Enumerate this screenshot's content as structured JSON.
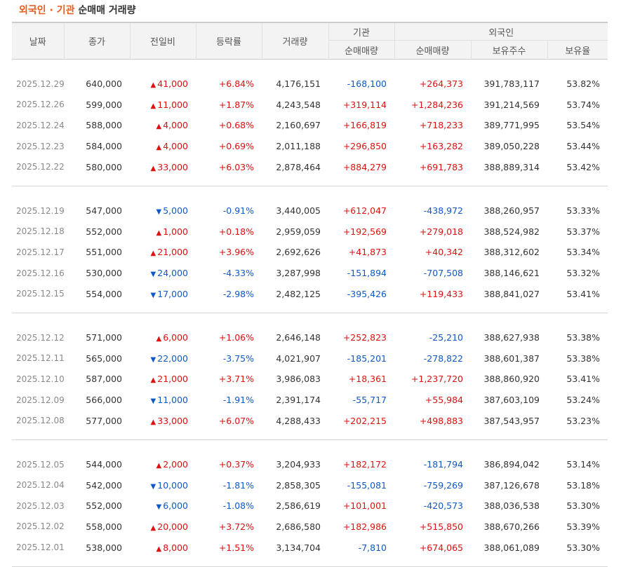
{
  "title": {
    "accent": "외국인 · 기관",
    "rest": "순매매 거래량"
  },
  "headers": {
    "date": "날짜",
    "close": "종가",
    "change": "전일비",
    "rate": "등락률",
    "volume": "거래량",
    "institution": "기관",
    "inst_net": "순매매량",
    "foreign": "외국인",
    "foreign_net": "순매매량",
    "foreign_shares": "보유주수",
    "foreign_ratio": "보유율"
  },
  "colors": {
    "up": "#dd1111",
    "down": "#1158c7",
    "accent": "#e95a1b"
  },
  "groups": [
    [
      {
        "date": "2025.12.29",
        "close": "640,000",
        "dir": "up",
        "change": "41,000",
        "rate": "+6.84%",
        "volume": "4,176,151",
        "inst": "-168,100",
        "foreign": "+264,373",
        "shares": "391,783,117",
        "ratio": "53.82%"
      },
      {
        "date": "2025.12.26",
        "close": "599,000",
        "dir": "up",
        "change": "11,000",
        "rate": "+1.87%",
        "volume": "4,243,548",
        "inst": "+319,114",
        "foreign": "+1,284,236",
        "shares": "391,214,569",
        "ratio": "53.74%"
      },
      {
        "date": "2025.12.24",
        "close": "588,000",
        "dir": "up",
        "change": "4,000",
        "rate": "+0.68%",
        "volume": "2,160,697",
        "inst": "+166,819",
        "foreign": "+718,233",
        "shares": "389,771,995",
        "ratio": "53.54%"
      },
      {
        "date": "2025.12.23",
        "close": "584,000",
        "dir": "up",
        "change": "4,000",
        "rate": "+0.69%",
        "volume": "2,011,188",
        "inst": "+296,850",
        "foreign": "+163,282",
        "shares": "389,050,228",
        "ratio": "53.44%"
      },
      {
        "date": "2025.12.22",
        "close": "580,000",
        "dir": "up",
        "change": "33,000",
        "rate": "+6.03%",
        "volume": "2,878,464",
        "inst": "+884,279",
        "foreign": "+691,783",
        "shares": "388,889,314",
        "ratio": "53.42%"
      }
    ],
    [
      {
        "date": "2025.12.19",
        "close": "547,000",
        "dir": "down",
        "change": "5,000",
        "rate": "-0.91%",
        "volume": "3,440,005",
        "inst": "+612,047",
        "foreign": "-438,972",
        "shares": "388,260,957",
        "ratio": "53.33%"
      },
      {
        "date": "2025.12.18",
        "close": "552,000",
        "dir": "up",
        "change": "1,000",
        "rate": "+0.18%",
        "volume": "2,959,059",
        "inst": "+192,569",
        "foreign": "+279,018",
        "shares": "388,524,982",
        "ratio": "53.37%"
      },
      {
        "date": "2025.12.17",
        "close": "551,000",
        "dir": "up",
        "change": "21,000",
        "rate": "+3.96%",
        "volume": "2,692,626",
        "inst": "+41,873",
        "foreign": "+40,342",
        "shares": "388,312,602",
        "ratio": "53.34%"
      },
      {
        "date": "2025.12.16",
        "close": "530,000",
        "dir": "down",
        "change": "24,000",
        "rate": "-4.33%",
        "volume": "3,287,998",
        "inst": "-151,894",
        "foreign": "-707,508",
        "shares": "388,146,621",
        "ratio": "53.32%"
      },
      {
        "date": "2025.12.15",
        "close": "554,000",
        "dir": "down",
        "change": "17,000",
        "rate": "-2.98%",
        "volume": "2,482,125",
        "inst": "-395,426",
        "foreign": "+119,433",
        "shares": "388,841,027",
        "ratio": "53.41%"
      }
    ],
    [
      {
        "date": "2025.12.12",
        "close": "571,000",
        "dir": "up",
        "change": "6,000",
        "rate": "+1.06%",
        "volume": "2,646,148",
        "inst": "+252,823",
        "foreign": "-25,210",
        "shares": "388,627,938",
        "ratio": "53.38%"
      },
      {
        "date": "2025.12.11",
        "close": "565,000",
        "dir": "down",
        "change": "22,000",
        "rate": "-3.75%",
        "volume": "4,021,907",
        "inst": "-185,201",
        "foreign": "-278,822",
        "shares": "388,601,387",
        "ratio": "53.38%"
      },
      {
        "date": "2025.12.10",
        "close": "587,000",
        "dir": "up",
        "change": "21,000",
        "rate": "+3.71%",
        "volume": "3,986,083",
        "inst": "+18,361",
        "foreign": "+1,237,720",
        "shares": "388,860,920",
        "ratio": "53.41%"
      },
      {
        "date": "2025.12.09",
        "close": "566,000",
        "dir": "down",
        "change": "11,000",
        "rate": "-1.91%",
        "volume": "2,391,174",
        "inst": "-55,717",
        "foreign": "+55,984",
        "shares": "387,603,109",
        "ratio": "53.24%"
      },
      {
        "date": "2025.12.08",
        "close": "577,000",
        "dir": "up",
        "change": "33,000",
        "rate": "+6.07%",
        "volume": "4,288,433",
        "inst": "+202,215",
        "foreign": "+498,883",
        "shares": "387,543,957",
        "ratio": "53.23%"
      }
    ],
    [
      {
        "date": "2025.12.05",
        "close": "544,000",
        "dir": "up",
        "change": "2,000",
        "rate": "+0.37%",
        "volume": "3,204,933",
        "inst": "+182,172",
        "foreign": "-181,794",
        "shares": "386,894,042",
        "ratio": "53.14%"
      },
      {
        "date": "2025.12.04",
        "close": "542,000",
        "dir": "down",
        "change": "10,000",
        "rate": "-1.81%",
        "volume": "2,858,305",
        "inst": "-155,081",
        "foreign": "-759,269",
        "shares": "387,126,678",
        "ratio": "53.18%"
      },
      {
        "date": "2025.12.03",
        "close": "552,000",
        "dir": "down",
        "change": "6,000",
        "rate": "-1.08%",
        "volume": "2,586,619",
        "inst": "+101,001",
        "foreign": "-420,573",
        "shares": "388,036,538",
        "ratio": "53.30%"
      },
      {
        "date": "2025.12.02",
        "close": "558,000",
        "dir": "up",
        "change": "20,000",
        "rate": "+3.72%",
        "volume": "2,686,580",
        "inst": "+182,986",
        "foreign": "+515,850",
        "shares": "388,670,266",
        "ratio": "53.39%"
      },
      {
        "date": "2025.12.01",
        "close": "538,000",
        "dir": "up",
        "change": "8,000",
        "rate": "+1.51%",
        "volume": "3,134,704",
        "inst": "-7,810",
        "foreign": "+674,065",
        "shares": "388,061,089",
        "ratio": "53.30%"
      }
    ]
  ]
}
